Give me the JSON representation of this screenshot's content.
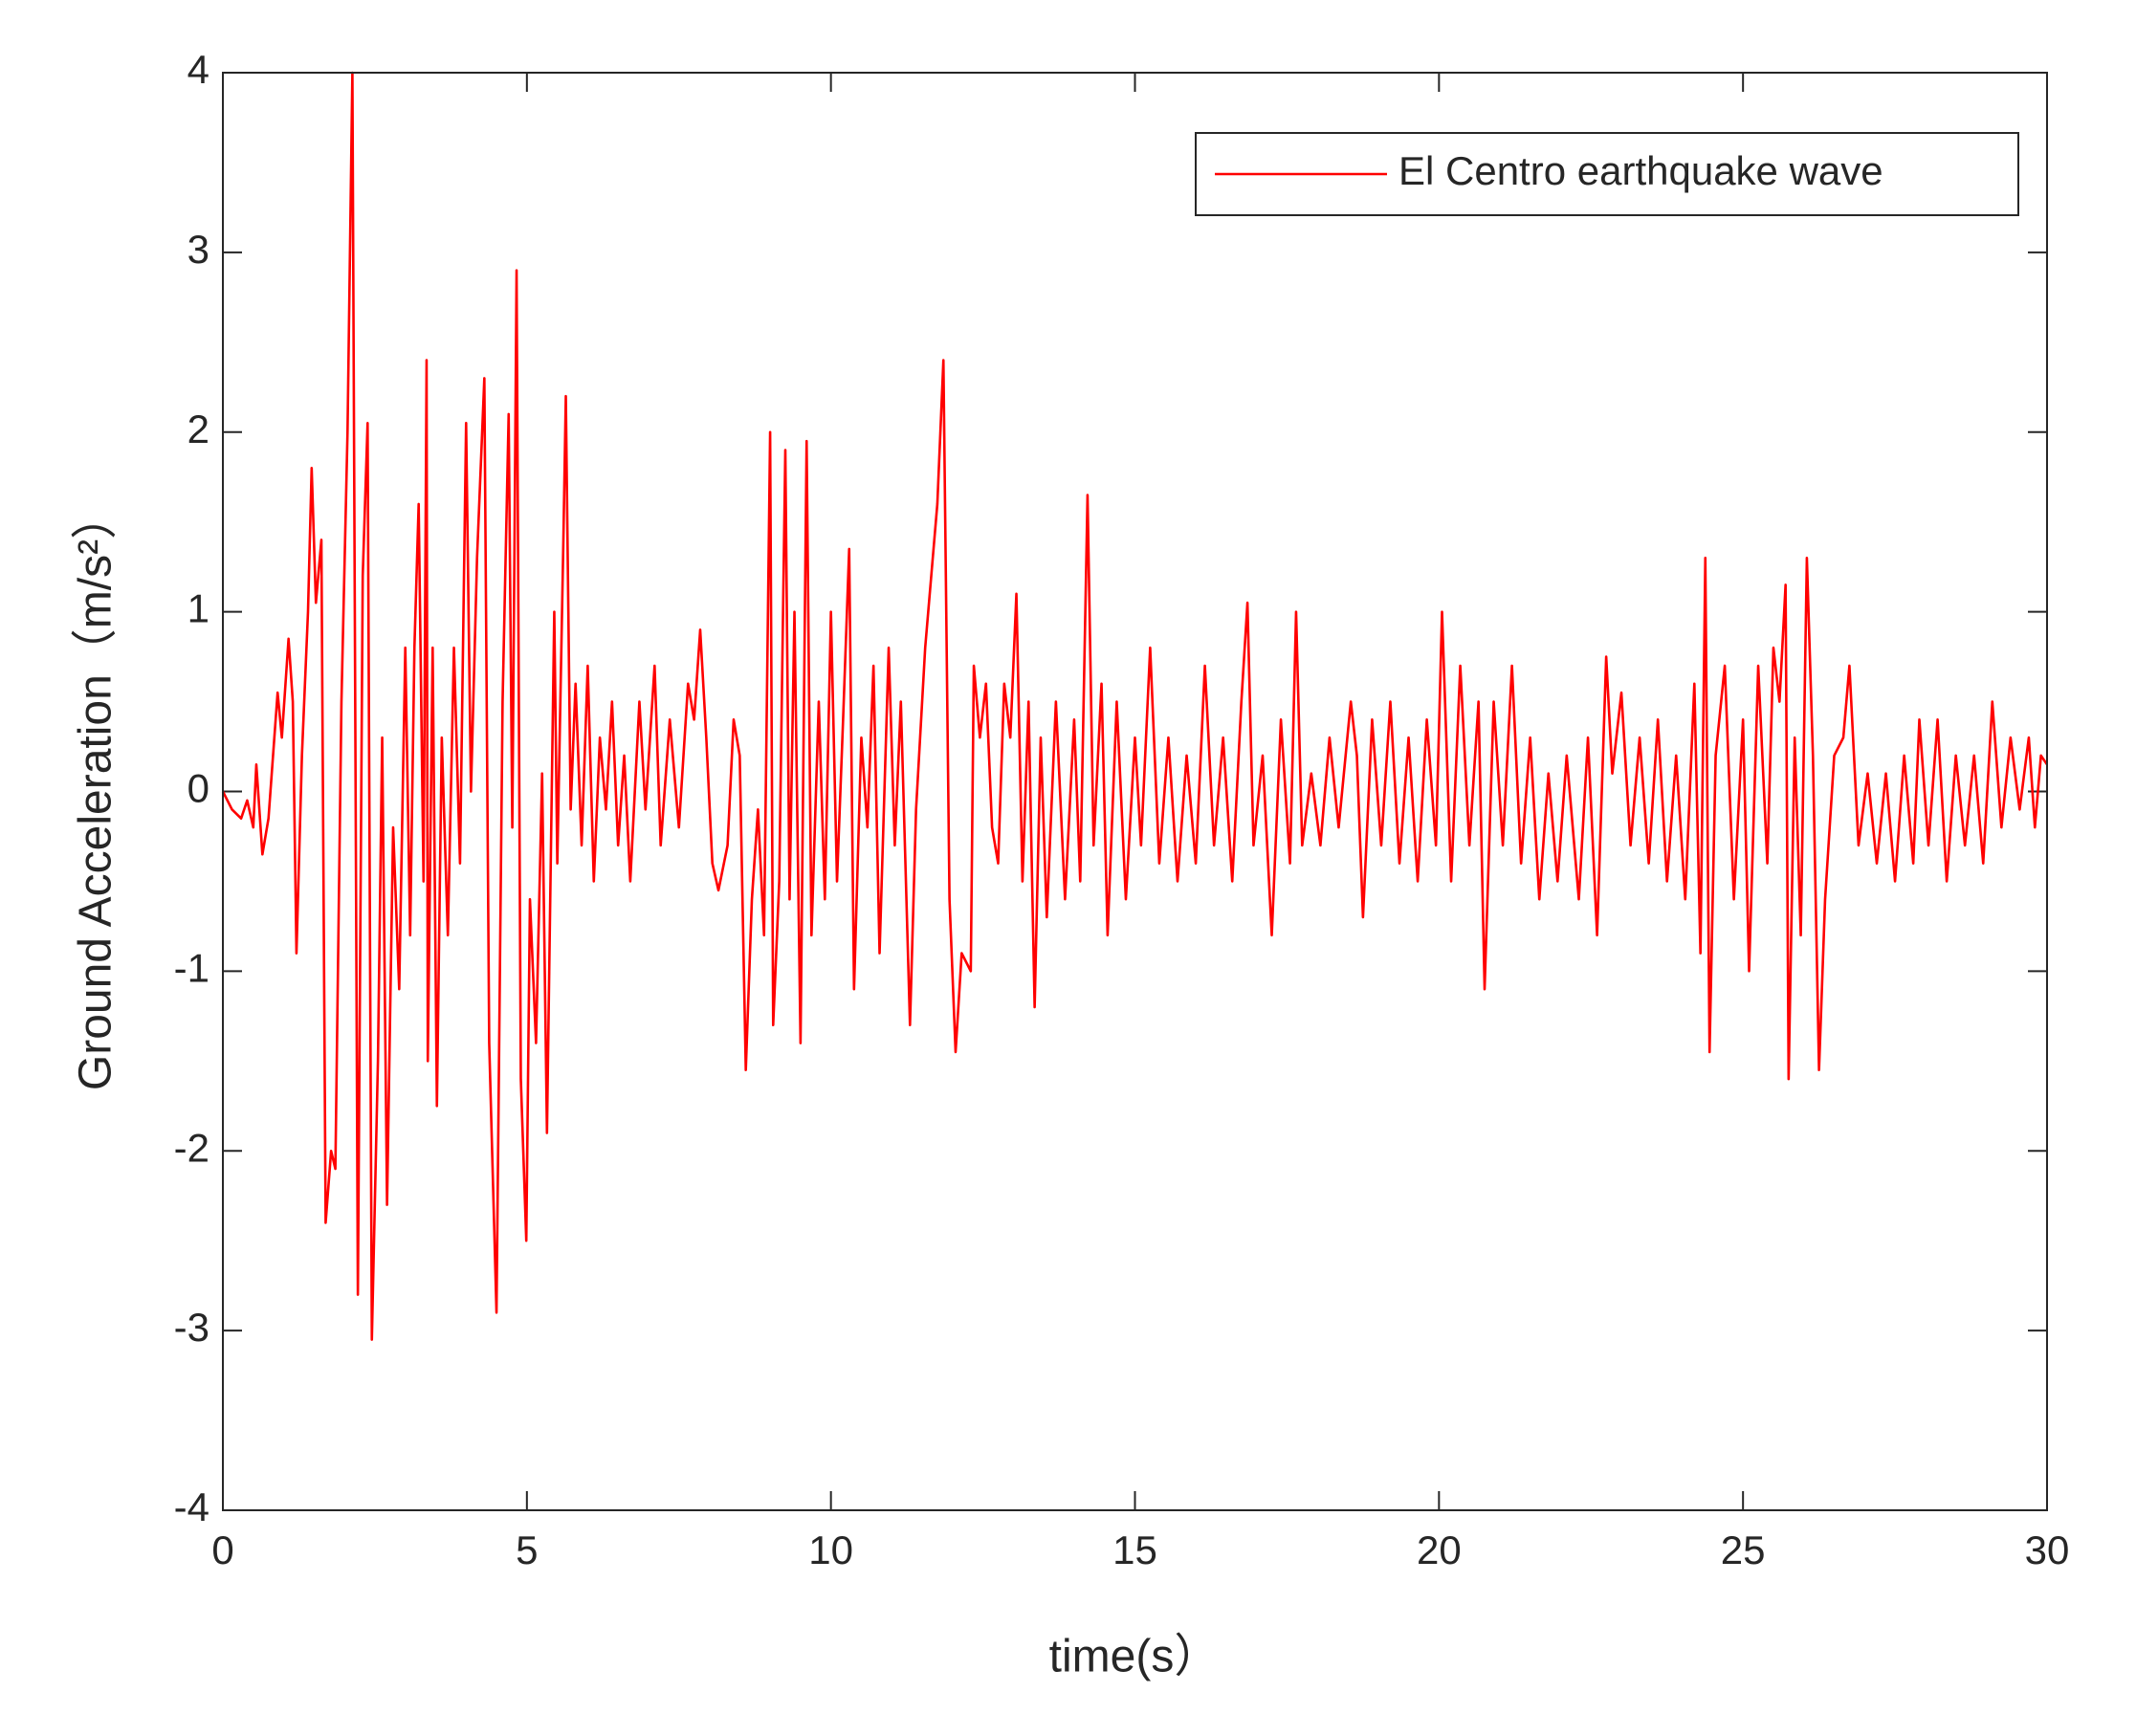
{
  "chart_data": {
    "type": "line",
    "xlabel": "time(s）",
    "ylabel": "Ground Acceleration（m/s²）",
    "xlim": [
      0,
      30
    ],
    "ylim": [
      -4,
      4
    ],
    "xticks": [
      0,
      5,
      10,
      15,
      20,
      25,
      30
    ],
    "yticks": [
      -4,
      -3,
      -2,
      -1,
      0,
      1,
      2,
      3,
      4
    ],
    "legend": "upper right",
    "grid": false,
    "x": [
      0,
      0.15,
      0.3,
      0.4,
      0.5,
      0.55,
      0.65,
      0.75,
      0.9,
      0.97,
      1.08,
      1.15,
      1.21,
      1.3,
      1.4,
      1.46,
      1.53,
      1.62,
      1.69,
      1.78,
      1.85,
      1.95,
      2.05,
      2.13,
      2.22,
      2.3,
      2.38,
      2.45,
      2.55,
      2.62,
      2.7,
      2.8,
      2.9,
      3.0,
      3.08,
      3.15,
      3.22,
      3.3,
      3.35,
      3.37,
      3.45,
      3.52,
      3.6,
      3.7,
      3.8,
      3.9,
      4.0,
      4.08,
      4.18,
      4.3,
      4.38,
      4.5,
      4.6,
      4.7,
      4.76,
      4.83,
      4.9,
      4.99,
      5.05,
      5.15,
      5.25,
      5.33,
      5.45,
      5.5,
      5.6,
      5.64,
      5.72,
      5.8,
      5.9,
      6.0,
      6.1,
      6.2,
      6.3,
      6.4,
      6.5,
      6.6,
      6.7,
      6.85,
      6.95,
      7.1,
      7.2,
      7.35,
      7.5,
      7.65,
      7.75,
      7.85,
      7.95,
      8.05,
      8.15,
      8.3,
      8.4,
      8.5,
      8.6,
      8.7,
      8.8,
      8.9,
      9.0,
      9.05,
      9.15,
      9.25,
      9.32,
      9.4,
      9.5,
      9.6,
      9.68,
      9.8,
      9.9,
      10.0,
      10.1,
      10.2,
      10.3,
      10.38,
      10.5,
      10.6,
      10.7,
      10.8,
      10.95,
      11.05,
      11.15,
      11.3,
      11.4,
      11.55,
      11.65,
      11.75,
      11.85,
      11.95,
      12.05,
      12.15,
      12.3,
      12.35,
      12.45,
      12.55,
      12.65,
      12.75,
      12.85,
      12.95,
      13.05,
      13.15,
      13.25,
      13.35,
      13.45,
      13.55,
      13.7,
      13.85,
      14.0,
      14.1,
      14.22,
      14.32,
      14.45,
      14.55,
      14.7,
      14.85,
      15.0,
      15.1,
      15.25,
      15.4,
      15.55,
      15.7,
      15.85,
      16.0,
      16.15,
      16.3,
      16.45,
      16.6,
      16.75,
      16.85,
      16.95,
      17.1,
      17.25,
      17.4,
      17.55,
      17.65,
      17.75,
      17.9,
      18.05,
      18.2,
      18.35,
      18.55,
      18.65,
      18.75,
      18.9,
      19.05,
      19.2,
      19.35,
      19.5,
      19.65,
      19.8,
      19.95,
      20.05,
      20.2,
      20.35,
      20.5,
      20.65,
      20.75,
      20.9,
      21.05,
      21.2,
      21.35,
      21.5,
      21.65,
      21.8,
      21.95,
      22.1,
      22.3,
      22.45,
      22.6,
      22.75,
      22.85,
      23.0,
      23.15,
      23.3,
      23.45,
      23.6,
      23.75,
      23.9,
      24.05,
      24.2,
      24.3,
      24.38,
      24.45,
      24.55,
      24.7,
      24.85,
      25.0,
      25.1,
      25.25,
      25.4,
      25.5,
      25.6,
      25.7,
      25.75,
      25.85,
      25.95,
      26.05,
      26.15,
      26.25,
      26.35,
      26.5,
      26.65,
      26.75,
      26.9,
      27.05,
      27.2,
      27.35,
      27.5,
      27.65,
      27.8,
      27.9,
      28.05,
      28.2,
      28.35,
      28.5,
      28.65,
      28.8,
      28.95,
      29.1,
      29.25,
      29.4,
      29.55,
      29.7,
      29.8,
      29.9,
      30.0
    ],
    "series": [
      {
        "name": "El Centro earthquake wave",
        "color": "#ff0000",
        "values": [
          0,
          -0.1,
          -0.15,
          -0.05,
          -0.2,
          0.15,
          -0.35,
          -0.15,
          0.55,
          0.3,
          0.85,
          0.5,
          -0.9,
          0.2,
          1.0,
          1.8,
          1.05,
          1.4,
          -2.4,
          -2.0,
          -2.1,
          0.5,
          2.0,
          4.0,
          -2.8,
          1.2,
          2.05,
          -3.05,
          -1.5,
          0.3,
          -2.3,
          -0.2,
          -1.1,
          0.8,
          -0.8,
          0.8,
          1.6,
          -0.5,
          2.4,
          -1.5,
          0.8,
          -1.75,
          0.3,
          -0.8,
          0.8,
          -0.4,
          2.05,
          0,
          1.3,
          2.3,
          -1.4,
          -2.9,
          0.5,
          2.1,
          -0.2,
          2.9,
          -1.6,
          -2.5,
          -0.6,
          -1.4,
          0.1,
          -1.9,
          1.0,
          -0.4,
          1.4,
          2.2,
          -0.1,
          0.6,
          -0.3,
          0.7,
          -0.5,
          0.3,
          -0.1,
          0.5,
          -0.3,
          0.2,
          -0.5,
          0.5,
          -0.1,
          0.7,
          -0.3,
          0.4,
          -0.2,
          0.6,
          0.4,
          0.9,
          0.3,
          -0.4,
          -0.55,
          -0.3,
          0.4,
          0.2,
          -1.55,
          -0.6,
          -0.1,
          -0.8,
          2.0,
          -1.3,
          -0.5,
          1.9,
          -0.6,
          1.0,
          -1.4,
          1.95,
          -0.8,
          0.5,
          -0.6,
          1.0,
          -0.5,
          0.4,
          1.35,
          -1.1,
          0.3,
          -0.2,
          0.7,
          -0.9,
          0.8,
          -0.3,
          0.5,
          -1.3,
          -0.1,
          0.8,
          1.2,
          1.6,
          2.4,
          -0.6,
          -1.45,
          -0.9,
          -1.0,
          0.7,
          0.3,
          0.6,
          -0.2,
          -0.4,
          0.6,
          0.3,
          1.1,
          -0.5,
          0.5,
          -1.2,
          0.3,
          -0.7,
          0.5,
          -0.6,
          0.4,
          -0.5,
          1.65,
          -0.3,
          0.6,
          -0.8,
          0.5,
          -0.6,
          0.3,
          -0.3,
          0.8,
          -0.4,
          0.3,
          -0.5,
          0.2,
          -0.4,
          0.7,
          -0.3,
          0.3,
          -0.5,
          0.5,
          1.05,
          -0.3,
          0.2,
          -0.8,
          0.4,
          -0.4,
          1.0,
          -0.3,
          0.1,
          -0.3,
          0.3,
          -0.2,
          0.5,
          0.2,
          -0.7,
          0.4,
          -0.3,
          0.5,
          -0.4,
          0.3,
          -0.5,
          0.4,
          -0.3,
          1.0,
          -0.5,
          0.7,
          -0.3,
          0.5,
          -1.1,
          0.5,
          -0.3,
          0.7,
          -0.4,
          0.3,
          -0.6,
          0.1,
          -0.5,
          0.2,
          -0.6,
          0.3,
          -0.8,
          0.75,
          0.1,
          0.55,
          -0.3,
          0.3,
          -0.4,
          0.4,
          -0.5,
          0.2,
          -0.6,
          0.6,
          -0.9,
          1.3,
          -1.45,
          0.2,
          0.7,
          -0.6,
          0.4,
          -1.0,
          0.7,
          -0.4,
          0.8,
          0.5,
          1.15,
          -1.6,
          0.3,
          -0.8,
          1.3,
          0.2,
          -1.55,
          -0.6,
          0.2,
          0.3,
          0.7,
          -0.3,
          0.1,
          -0.4,
          0.1,
          -0.5,
          0.2,
          -0.4,
          0.4,
          -0.3,
          0.4,
          -0.5,
          0.2,
          -0.3,
          0.2,
          -0.4,
          0.5,
          -0.2,
          0.3,
          -0.1,
          0.3,
          -0.2,
          0.2,
          0.15
        ]
      }
    ]
  }
}
